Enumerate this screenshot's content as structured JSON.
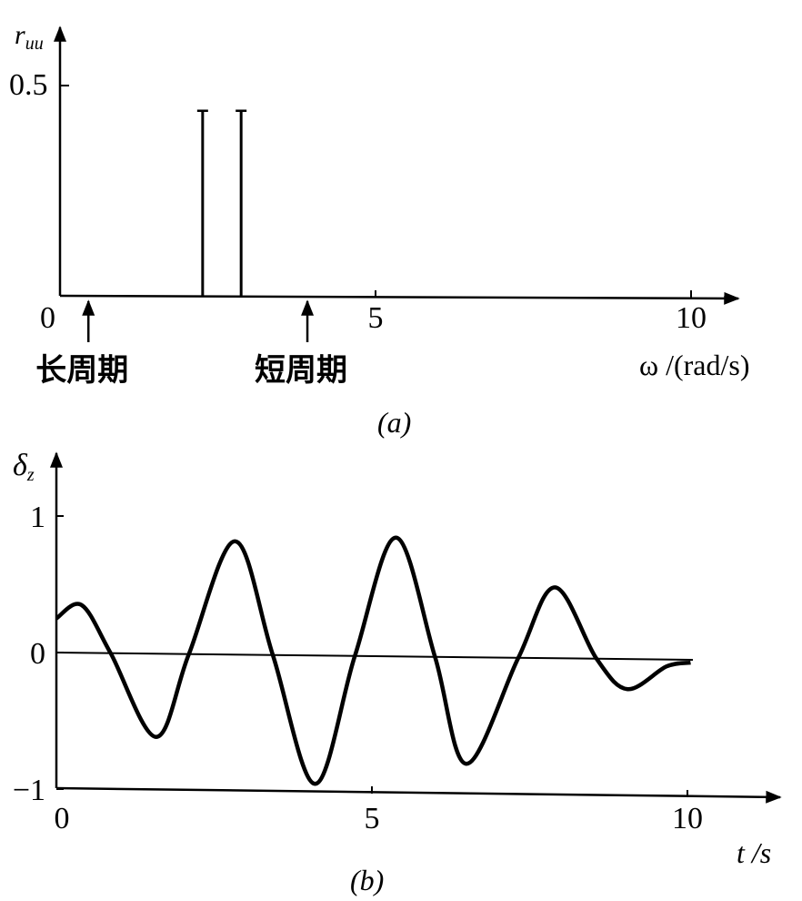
{
  "chart_data": [
    {
      "type": "bar",
      "caption": "(a)",
      "ylabel": "r_uu",
      "xlabel": "ω /(rad/s)",
      "xlim": [
        0,
        10.8
      ],
      "ylim": [
        0,
        0.65
      ],
      "xticks": [
        {
          "value": 0,
          "label": "0"
        },
        {
          "value": 5,
          "label": "5"
        },
        {
          "value": 10,
          "label": "10"
        }
      ],
      "yticks": [
        {
          "value": 0.5,
          "label": "0.5"
        }
      ],
      "bars": [
        {
          "x": 2.26,
          "value": 0.44
        },
        {
          "x": 2.87,
          "value": 0.44
        }
      ],
      "annotations": [
        {
          "x": 0.45,
          "text": "长周期"
        },
        {
          "x": 3.92,
          "text": "短周期"
        }
      ],
      "grid": false
    },
    {
      "type": "line",
      "caption": "(b)",
      "ylabel": "δ_z",
      "xlabel": "t /s",
      "xlim": [
        0,
        11.4
      ],
      "ylim": [
        -1,
        1.3
      ],
      "xticks": [
        {
          "value": 0,
          "label": "0"
        },
        {
          "value": 5,
          "label": "5"
        },
        {
          "value": 10,
          "label": "10"
        }
      ],
      "yticks": [
        {
          "value": 1,
          "label": "1"
        },
        {
          "value": 0,
          "label": "0"
        },
        {
          "value": -1,
          "label": "−1"
        }
      ],
      "x": [
        0,
        0.4,
        0.86,
        1.58,
        2.1,
        2.83,
        3.43,
        4.1,
        4.73,
        5.38,
        6.0,
        6.5,
        7.32,
        7.9,
        8.56,
        9.05,
        9.67,
        10.05
      ],
      "y": [
        0.25,
        0.35,
        0,
        -0.61,
        0,
        0.83,
        0,
        -0.94,
        0,
        0.87,
        0,
        -0.78,
        0,
        0.52,
        0,
        -0.22,
        -0.05,
        -0.02
      ],
      "grid": false
    }
  ]
}
